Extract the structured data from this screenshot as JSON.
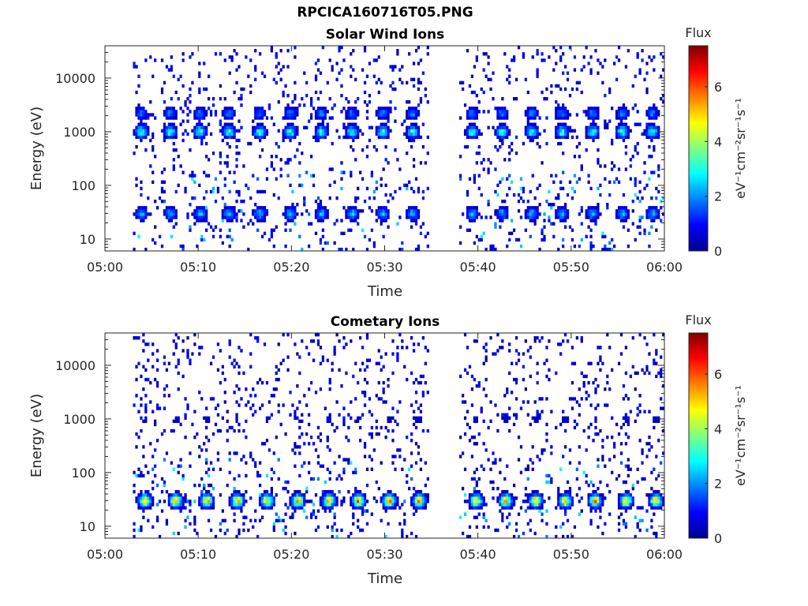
{
  "figure": {
    "filename_title": "RPCICA160716T05.PNG"
  },
  "colorbar": {
    "title": "Flux",
    "unit_label": "eV⁻¹cm⁻²sr⁻¹s⁻¹",
    "range": [
      0,
      7.5
    ],
    "ticks": [
      "0",
      "2",
      "4",
      "6"
    ],
    "tick_values": [
      0,
      2,
      4,
      6
    ],
    "colormap": "jet"
  },
  "chart_data": [
    {
      "type": "heatmap",
      "title": "Solar Wind Ions",
      "xlabel": "Time",
      "ylabel": "Energy (eV)",
      "x_ticks": [
        "05:00",
        "05:10",
        "05:20",
        "05:30",
        "05:40",
        "05:50",
        "06:00"
      ],
      "x_tick_minutes": [
        0,
        10,
        20,
        30,
        40,
        50,
        60
      ],
      "xlim_minutes": [
        0,
        60
      ],
      "y_scale": "log",
      "y_ticks": [
        "10",
        "100",
        "1000",
        "10000"
      ],
      "y_tick_values": [
        10,
        100,
        1000,
        10000
      ],
      "ylim": [
        6,
        40000
      ],
      "data_gap_minutes": [
        34.8,
        38.0
      ],
      "sweep_center_minutes": [
        3.9,
        7.0,
        10.2,
        13.3,
        16.6,
        19.9,
        23.2,
        26.5,
        29.8,
        33.0,
        39.4,
        42.6,
        45.8,
        49.0,
        52.3,
        55.5,
        58.7
      ],
      "bands": [
        {
          "energy_eV": 1000,
          "flux": 3.4,
          "description": "solar wind proton peak"
        },
        {
          "energy_eV": 2200,
          "flux": 2.0,
          "description": "alpha peak"
        },
        {
          "energy_eV": 30,
          "flux": 2.5,
          "description": "low-energy population"
        }
      ],
      "background_flux": 0.3
    },
    {
      "type": "heatmap",
      "title": "Cometary Ions",
      "xlabel": "Time",
      "ylabel": "Energy (eV)",
      "x_ticks": [
        "05:00",
        "05:10",
        "05:20",
        "05:30",
        "05:40",
        "05:50",
        "06:00"
      ],
      "x_tick_minutes": [
        0,
        10,
        20,
        30,
        40,
        50,
        60
      ],
      "xlim_minutes": [
        0,
        60
      ],
      "y_scale": "log",
      "y_ticks": [
        "10",
        "100",
        "1000",
        "10000"
      ],
      "y_tick_values": [
        10,
        100,
        1000,
        10000
      ],
      "ylim": [
        6,
        40000
      ],
      "data_gap_minutes": [
        34.8,
        38.0
      ],
      "sweep_center_minutes": [
        4.3,
        7.6,
        10.9,
        14.2,
        17.4,
        20.7,
        24.0,
        27.2,
        30.5,
        33.7,
        39.8,
        43.0,
        46.2,
        49.4,
        52.6,
        55.9,
        59.1
      ],
      "bands": [
        {
          "energy_eV": 30,
          "flux": 5.6,
          "description": "cometary ion peak"
        },
        {
          "energy_eV": 1000,
          "flux": 0.6,
          "description": "sparse high-energy counts"
        }
      ],
      "background_flux": 0.2
    }
  ]
}
